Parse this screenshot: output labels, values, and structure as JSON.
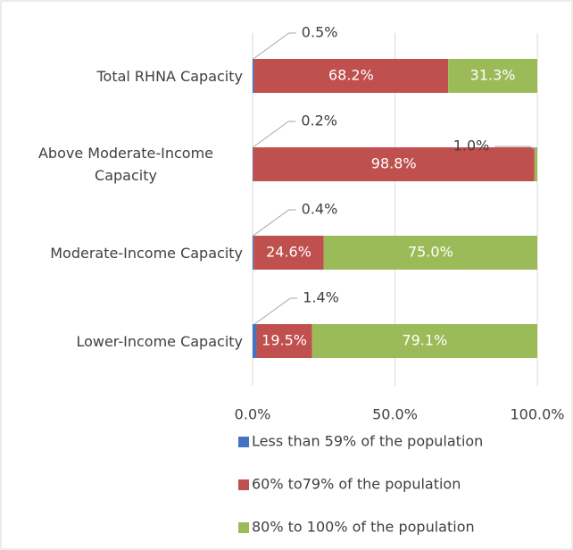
{
  "chart_data": {
    "type": "stacked-barh",
    "categories": [
      "Total RHNA Capacity",
      "Above Moderate-Income Capacity",
      "Moderate-Income Capacity",
      "Lower-Income Capacity"
    ],
    "series": [
      {
        "name": "Less than 59% of the population",
        "color": "#4472c4",
        "values": [
          0.5,
          0.2,
          0.4,
          1.4
        ],
        "value_labels": [
          "0.5%",
          "0.2%",
          "0.4%",
          "1.4%"
        ]
      },
      {
        "name": "60% to79% of the population",
        "color": "#c0504d",
        "values": [
          68.2,
          98.8,
          24.6,
          19.5
        ],
        "value_labels": [
          "68.2%",
          "98.8%",
          "24.6%",
          "19.5%"
        ]
      },
      {
        "name": "80% to 100% of the population",
        "color": "#9bbb59",
        "values": [
          31.3,
          1.0,
          75.0,
          79.1
        ],
        "value_labels": [
          "31.3%",
          "1.0%",
          "75.0%",
          "79.1%"
        ]
      }
    ],
    "xlim": [
      0,
      100
    ],
    "xticks": [
      {
        "value": 0,
        "label": "0.0%"
      },
      {
        "value": 50,
        "label": "50.0%"
      },
      {
        "value": 100,
        "label": "100.0%"
      }
    ],
    "grid": true,
    "legend": "bottom"
  }
}
